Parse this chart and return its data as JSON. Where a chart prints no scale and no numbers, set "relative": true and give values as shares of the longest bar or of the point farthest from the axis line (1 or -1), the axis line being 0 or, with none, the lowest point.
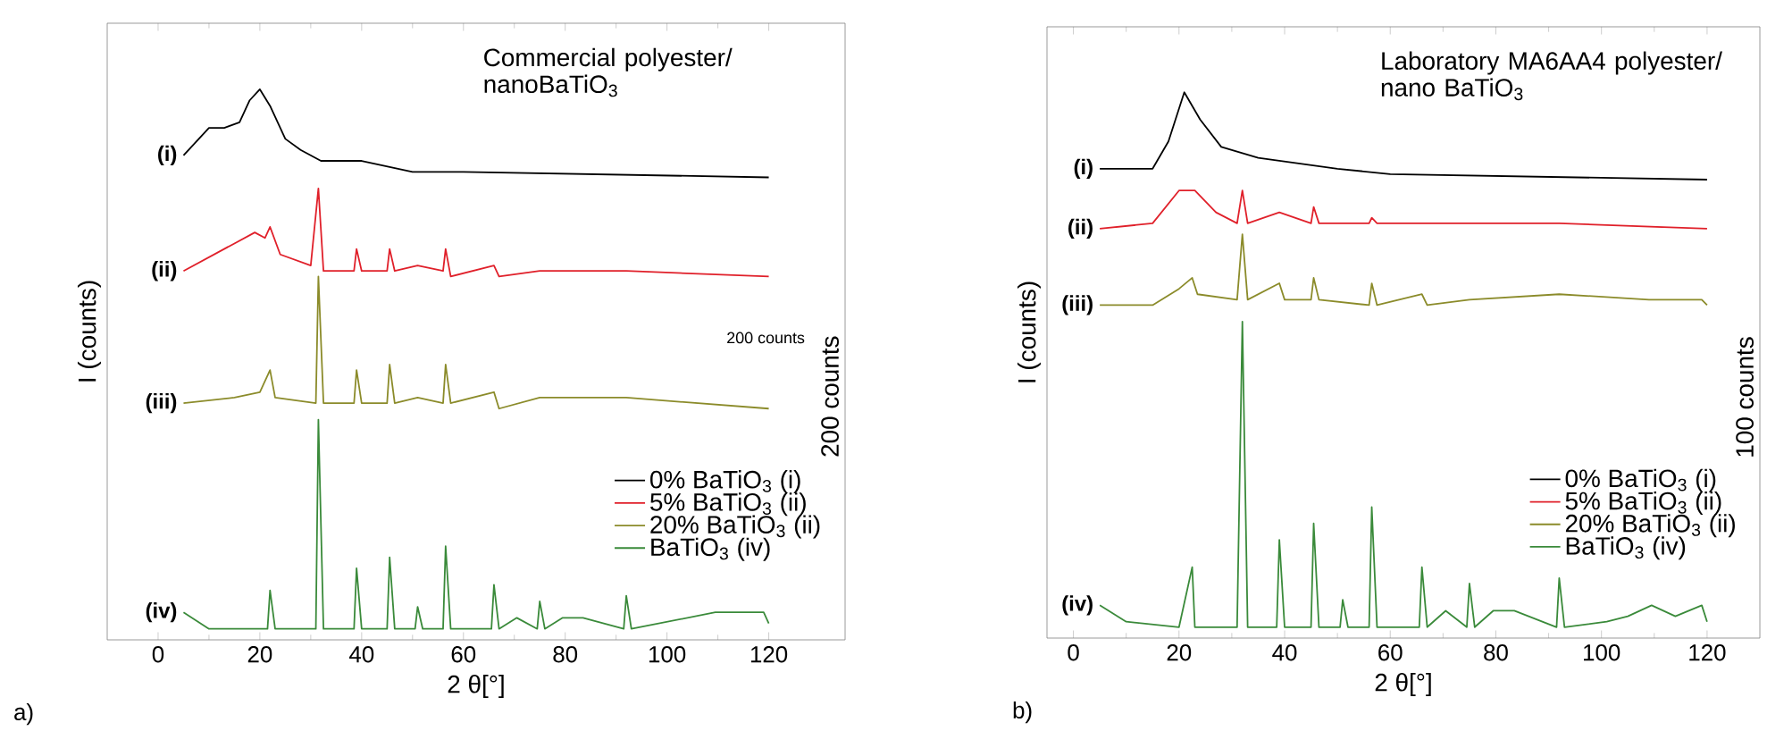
{
  "chart_data": [
    {
      "type": "line",
      "relative": true,
      "title": "Commercial polyester/ nanoBaTiO$_{3}$",
      "xlabel": "2 θ[°]",
      "ylabel": "I (counts)",
      "xlim": [
        -10,
        135
      ],
      "xticks": [
        0,
        20,
        40,
        60,
        80,
        100,
        120
      ],
      "tick_labels": "x",
      "legend": "bottom right",
      "series": [
        {
          "name": "0% BaTiO$_{3}$ (i)",
          "color": "#000000",
          "x": [
            5,
            10,
            13,
            16,
            18,
            20,
            22,
            25,
            28,
            32,
            40,
            50,
            60,
            120
          ],
          "values": [
            0.88,
            0.93,
            0.93,
            0.94,
            0.98,
            1.0,
            0.97,
            0.91,
            0.89,
            0.87,
            0.87,
            0.85,
            0.85,
            0.84
          ]
        },
        {
          "name": "5% BaTiO$_{3}$ (ii)",
          "color": "#e0202a",
          "x": [
            5,
            15,
            19,
            21,
            22,
            24,
            30,
            31.5,
            32.5,
            38.5,
            39,
            40,
            45,
            45.5,
            46.5,
            51,
            56,
            56.5,
            57.5,
            66,
            67,
            75,
            92,
            120
          ],
          "values": [
            0.67,
            0.72,
            0.74,
            0.73,
            0.75,
            0.7,
            0.68,
            0.82,
            0.67,
            0.67,
            0.71,
            0.67,
            0.67,
            0.71,
            0.67,
            0.68,
            0.67,
            0.71,
            0.66,
            0.68,
            0.66,
            0.67,
            0.67,
            0.66
          ]
        },
        {
          "name": "20% BaTiO$_{3}$ (ii)",
          "color": "#8b8b2a",
          "x": [
            5,
            15,
            20,
            22,
            23,
            31,
            31.5,
            32.5,
            38.5,
            39,
            40,
            45,
            45.5,
            46.5,
            51,
            56,
            56.5,
            57.5,
            66,
            67,
            75,
            92,
            120
          ],
          "values": [
            0.43,
            0.44,
            0.45,
            0.49,
            0.44,
            0.43,
            0.66,
            0.43,
            0.43,
            0.49,
            0.43,
            0.43,
            0.5,
            0.43,
            0.44,
            0.43,
            0.5,
            0.43,
            0.45,
            0.42,
            0.44,
            0.44,
            0.42
          ]
        },
        {
          "name": "BaTiO$_{3}$ (iv)",
          "color": "#3a8a3a",
          "x": [
            5,
            10,
            21.5,
            22,
            23,
            31,
            31.5,
            32.5,
            38.5,
            39,
            40,
            45,
            45.5,
            46.5,
            50.5,
            51,
            52,
            56,
            56.5,
            57.5,
            65.5,
            66,
            67,
            70.5,
            74.5,
            75,
            76,
            79.5,
            83.5,
            91.5,
            92,
            93,
            109.5,
            119,
            120
          ],
          "values": [
            0.05,
            0.02,
            0.02,
            0.09,
            0.02,
            0.02,
            0.4,
            0.02,
            0.02,
            0.13,
            0.02,
            0.02,
            0.15,
            0.02,
            0.02,
            0.06,
            0.02,
            0.02,
            0.17,
            0.02,
            0.02,
            0.1,
            0.02,
            0.04,
            0.02,
            0.07,
            0.02,
            0.04,
            0.04,
            0.02,
            0.08,
            0.02,
            0.05,
            0.05,
            0.03
          ]
        }
      ],
      "annotations": [
        "(i)",
        "(ii)",
        "(iii)",
        "(iv)",
        "a)",
        "200 counts",
        "200 counts"
      ]
    },
    {
      "type": "line",
      "relative": true,
      "title": "Laboratory MA6AA4 polyester/ nano BaTiO$_{3}$",
      "xlabel": "2 θ[°]",
      "ylabel": "I (counts)",
      "xlim": [
        -5,
        130
      ],
      "xticks": [
        0,
        20,
        40,
        60,
        80,
        100,
        120
      ],
      "tick_labels": "x",
      "legend": "bottom right",
      "series": [
        {
          "name": "0% BaTiO$_{3}$ (i)",
          "color": "#000000",
          "x": [
            5,
            15,
            18,
            21,
            24,
            28,
            35,
            50,
            60,
            120
          ],
          "values": [
            0.86,
            0.86,
            0.91,
            1.0,
            0.95,
            0.9,
            0.88,
            0.86,
            0.85,
            0.84
          ]
        },
        {
          "name": "5% BaTiO$_{3}$ (ii)",
          "color": "#e0202a",
          "x": [
            5,
            15,
            20,
            23,
            27,
            31,
            32,
            33,
            39,
            45,
            45.5,
            46.5,
            56,
            56.5,
            57.5,
            66,
            92,
            120
          ],
          "values": [
            0.75,
            0.76,
            0.82,
            0.82,
            0.78,
            0.76,
            0.82,
            0.76,
            0.78,
            0.76,
            0.79,
            0.76,
            0.76,
            0.77,
            0.76,
            0.76,
            0.76,
            0.75
          ]
        },
        {
          "name": "20% BaTiO$_{3}$ (ii)",
          "color": "#8b8b2a",
          "x": [
            5,
            15,
            20,
            22.5,
            23.5,
            31,
            32,
            33,
            39,
            40,
            45,
            45.5,
            46.5,
            56,
            56.5,
            57.5,
            66,
            67,
            75,
            92,
            109,
            119,
            120
          ],
          "values": [
            0.61,
            0.61,
            0.64,
            0.66,
            0.63,
            0.62,
            0.74,
            0.62,
            0.65,
            0.62,
            0.62,
            0.66,
            0.62,
            0.61,
            0.65,
            0.61,
            0.63,
            0.61,
            0.62,
            0.63,
            0.62,
            0.62,
            0.61
          ]
        },
        {
          "name": "BaTiO$_{3}$ (iv)",
          "color": "#3a8a3a",
          "x": [
            5,
            10,
            20,
            22.5,
            23,
            31,
            32,
            33,
            38.5,
            39,
            40,
            45,
            45.5,
            46.5,
            50.5,
            51,
            52,
            56,
            56.5,
            57.5,
            65.5,
            66,
            67,
            70.5,
            74.5,
            75,
            76,
            79.5,
            83.5,
            91.5,
            92,
            93,
            101,
            105,
            109.5,
            114,
            119,
            120
          ],
          "values": [
            0.06,
            0.03,
            0.02,
            0.13,
            0.02,
            0.02,
            0.58,
            0.02,
            0.02,
            0.18,
            0.02,
            0.02,
            0.21,
            0.02,
            0.02,
            0.07,
            0.02,
            0.02,
            0.24,
            0.02,
            0.02,
            0.13,
            0.02,
            0.05,
            0.02,
            0.1,
            0.02,
            0.05,
            0.05,
            0.02,
            0.11,
            0.02,
            0.03,
            0.04,
            0.06,
            0.04,
            0.06,
            0.03
          ]
        }
      ],
      "annotations": [
        "(i)",
        "(ii)",
        "(iii)",
        "(iv)",
        "b)",
        "100 counts"
      ]
    }
  ]
}
